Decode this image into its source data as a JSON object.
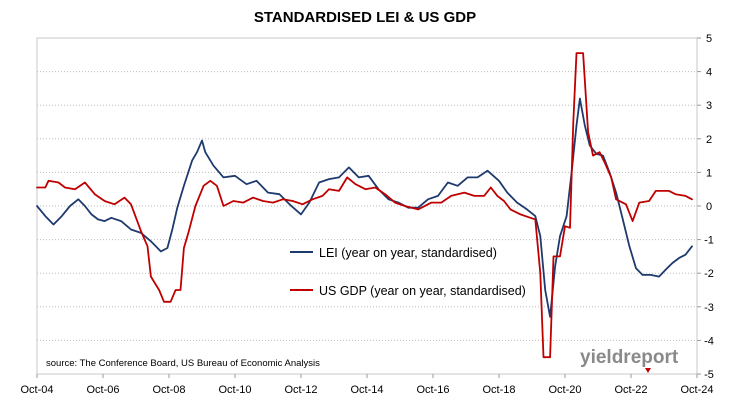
{
  "chart_data": {
    "type": "line",
    "title": "STANDARDISED LEI & US GDP",
    "xlabel": "",
    "ylabel": "",
    "x_tick_labels": [
      "Oct-04",
      "Oct-06",
      "Oct-08",
      "Oct-10",
      "Oct-12",
      "Oct-14",
      "Oct-16",
      "Oct-18",
      "Oct-20",
      "Oct-22",
      "Oct-24"
    ],
    "y_tick_labels": [
      "5",
      "4",
      "3",
      "2",
      "1",
      "0",
      "-1",
      "-2",
      "-3",
      "-4",
      "-5"
    ],
    "xlim": [
      "2004-10",
      "2024-10"
    ],
    "ylim": [
      -5,
      5
    ],
    "y_axis_side": "right",
    "grid": "horizontal-dotted",
    "legend_position": "center",
    "series": [
      {
        "name": "LEI (year on year, standardised)",
        "color": "#1f3a6e",
        "points": [
          [
            2004.75,
            0.0
          ],
          [
            2005.0,
            -0.3
          ],
          [
            2005.25,
            -0.55
          ],
          [
            2005.5,
            -0.3
          ],
          [
            2005.75,
            0.0
          ],
          [
            2006.0,
            0.2
          ],
          [
            2006.2,
            0.0
          ],
          [
            2006.4,
            -0.25
          ],
          [
            2006.6,
            -0.4
          ],
          [
            2006.8,
            -0.45
          ],
          [
            2007.0,
            -0.35
          ],
          [
            2007.3,
            -0.45
          ],
          [
            2007.6,
            -0.7
          ],
          [
            2007.9,
            -0.8
          ],
          [
            2008.2,
            -1.05
          ],
          [
            2008.5,
            -1.35
          ],
          [
            2008.7,
            -1.25
          ],
          [
            2008.85,
            -0.7
          ],
          [
            2009.0,
            -0.05
          ],
          [
            2009.2,
            0.6
          ],
          [
            2009.45,
            1.35
          ],
          [
            2009.6,
            1.6
          ],
          [
            2009.75,
            1.95
          ],
          [
            2009.85,
            1.6
          ],
          [
            2010.1,
            1.2
          ],
          [
            2010.4,
            0.85
          ],
          [
            2010.75,
            0.9
          ],
          [
            2011.1,
            0.65
          ],
          [
            2011.4,
            0.75
          ],
          [
            2011.75,
            0.4
          ],
          [
            2012.1,
            0.35
          ],
          [
            2012.4,
            0.05
          ],
          [
            2012.75,
            -0.25
          ],
          [
            2013.0,
            0.1
          ],
          [
            2013.3,
            0.7
          ],
          [
            2013.6,
            0.8
          ],
          [
            2013.9,
            0.85
          ],
          [
            2014.2,
            1.15
          ],
          [
            2014.5,
            0.85
          ],
          [
            2014.8,
            0.9
          ],
          [
            2015.1,
            0.5
          ],
          [
            2015.4,
            0.2
          ],
          [
            2015.7,
            0.1
          ],
          [
            2016.0,
            -0.05
          ],
          [
            2016.3,
            -0.05
          ],
          [
            2016.6,
            0.2
          ],
          [
            2016.9,
            0.3
          ],
          [
            2017.2,
            0.7
          ],
          [
            2017.5,
            0.6
          ],
          [
            2017.8,
            0.85
          ],
          [
            2018.1,
            0.85
          ],
          [
            2018.4,
            1.05
          ],
          [
            2018.75,
            0.75
          ],
          [
            2019.0,
            0.4
          ],
          [
            2019.3,
            0.1
          ],
          [
            2019.6,
            -0.1
          ],
          [
            2019.85,
            -0.3
          ],
          [
            2020.0,
            -0.9
          ],
          [
            2020.15,
            -2.5
          ],
          [
            2020.3,
            -3.3
          ],
          [
            2020.45,
            -1.8
          ],
          [
            2020.6,
            -0.9
          ],
          [
            2020.8,
            -0.3
          ],
          [
            2020.95,
            1.0
          ],
          [
            2021.1,
            2.4
          ],
          [
            2021.2,
            3.2
          ],
          [
            2021.35,
            2.4
          ],
          [
            2021.5,
            1.8
          ],
          [
            2021.7,
            1.55
          ],
          [
            2021.9,
            1.5
          ],
          [
            2022.1,
            1.0
          ],
          [
            2022.3,
            0.4
          ],
          [
            2022.5,
            -0.4
          ],
          [
            2022.7,
            -1.2
          ],
          [
            2022.9,
            -1.85
          ],
          [
            2023.1,
            -2.05
          ],
          [
            2023.35,
            -2.05
          ],
          [
            2023.6,
            -2.1
          ],
          [
            2023.8,
            -1.9
          ],
          [
            2024.0,
            -1.7
          ],
          [
            2024.2,
            -1.55
          ],
          [
            2024.4,
            -1.45
          ],
          [
            2024.6,
            -1.2
          ]
        ]
      },
      {
        "name": "US GDP (year on year, standardised)",
        "color": "#c00000",
        "points": [
          [
            2004.75,
            0.55
          ],
          [
            2005.0,
            0.55
          ],
          [
            2005.1,
            0.75
          ],
          [
            2005.4,
            0.7
          ],
          [
            2005.6,
            0.55
          ],
          [
            2005.9,
            0.5
          ],
          [
            2006.2,
            0.7
          ],
          [
            2006.5,
            0.35
          ],
          [
            2006.8,
            0.15
          ],
          [
            2007.1,
            0.05
          ],
          [
            2007.4,
            0.25
          ],
          [
            2007.6,
            0.05
          ],
          [
            2007.9,
            -0.75
          ],
          [
            2008.1,
            -1.2
          ],
          [
            2008.2,
            -2.1
          ],
          [
            2008.45,
            -2.5
          ],
          [
            2008.6,
            -2.85
          ],
          [
            2008.8,
            -2.85
          ],
          [
            2008.95,
            -2.5
          ],
          [
            2009.1,
            -2.5
          ],
          [
            2009.2,
            -1.25
          ],
          [
            2009.35,
            -0.75
          ],
          [
            2009.55,
            0.0
          ],
          [
            2009.8,
            0.6
          ],
          [
            2010.0,
            0.75
          ],
          [
            2010.2,
            0.6
          ],
          [
            2010.4,
            0.0
          ],
          [
            2010.7,
            0.15
          ],
          [
            2011.0,
            0.1
          ],
          [
            2011.3,
            0.25
          ],
          [
            2011.6,
            0.15
          ],
          [
            2011.9,
            0.1
          ],
          [
            2012.2,
            0.2
          ],
          [
            2012.5,
            0.15
          ],
          [
            2012.8,
            0.05
          ],
          [
            2013.1,
            0.2
          ],
          [
            2013.4,
            0.3
          ],
          [
            2013.6,
            0.5
          ],
          [
            2013.9,
            0.45
          ],
          [
            2014.15,
            0.85
          ],
          [
            2014.4,
            0.65
          ],
          [
            2014.7,
            0.5
          ],
          [
            2015.0,
            0.55
          ],
          [
            2015.3,
            0.35
          ],
          [
            2015.6,
            0.1
          ],
          [
            2015.9,
            0.0
          ],
          [
            2016.3,
            -0.1
          ],
          [
            2016.7,
            0.1
          ],
          [
            2017.0,
            0.1
          ],
          [
            2017.3,
            0.3
          ],
          [
            2017.7,
            0.4
          ],
          [
            2018.0,
            0.3
          ],
          [
            2018.3,
            0.3
          ],
          [
            2018.5,
            0.55
          ],
          [
            2018.7,
            0.3
          ],
          [
            2018.9,
            0.15
          ],
          [
            2019.1,
            -0.1
          ],
          [
            2019.4,
            -0.25
          ],
          [
            2019.7,
            -0.35
          ],
          [
            2019.85,
            -0.4
          ],
          [
            2020.0,
            -2.0
          ],
          [
            2020.1,
            -4.5
          ],
          [
            2020.3,
            -4.5
          ],
          [
            2020.4,
            -1.5
          ],
          [
            2020.6,
            -1.5
          ],
          [
            2020.75,
            -0.6
          ],
          [
            2020.9,
            -0.65
          ],
          [
            2021.0,
            2.5
          ],
          [
            2021.1,
            4.55
          ],
          [
            2021.3,
            4.55
          ],
          [
            2021.45,
            2.2
          ],
          [
            2021.6,
            1.5
          ],
          [
            2021.8,
            1.6
          ],
          [
            2021.95,
            1.3
          ],
          [
            2022.15,
            0.85
          ],
          [
            2022.3,
            0.2
          ],
          [
            2022.6,
            0.05
          ],
          [
            2022.8,
            -0.45
          ],
          [
            2023.0,
            0.1
          ],
          [
            2023.3,
            0.15
          ],
          [
            2023.5,
            0.45
          ],
          [
            2023.9,
            0.45
          ],
          [
            2024.1,
            0.35
          ],
          [
            2024.4,
            0.3
          ],
          [
            2024.6,
            0.2
          ]
        ]
      }
    ]
  },
  "source_note": "source: The Conference Board, US Bureau of Economic Analysis",
  "logo": {
    "text": "yieldreport",
    "accent_color": "#c00000",
    "text_color": "#8a8a8a"
  }
}
